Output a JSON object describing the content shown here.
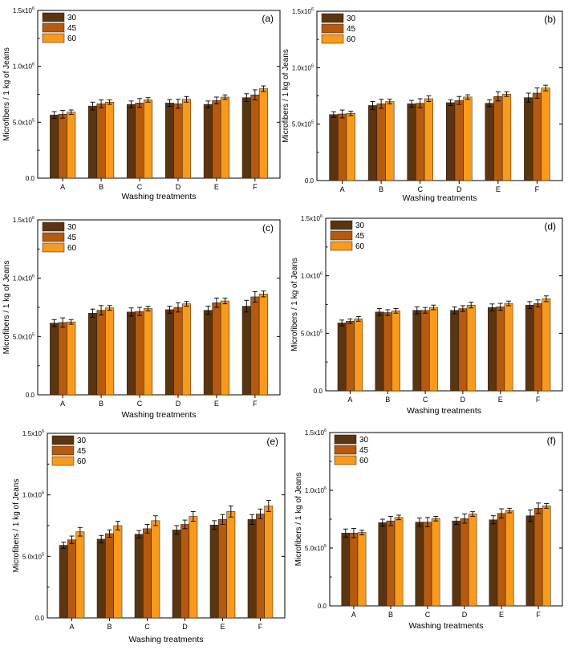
{
  "colors": {
    "s30": "#5b3410",
    "s45": "#b55a0e",
    "s60": "#f79a1d"
  },
  "chart_data": [
    {
      "type": "bar",
      "panel_label": "(a)",
      "categories": [
        "A",
        "B",
        "C",
        "D",
        "E",
        "F"
      ],
      "xlabel": "Washing treatments",
      "ylabel": "Microfibers / 1 kg of Jeans",
      "ylim": [
        0,
        1500000
      ],
      "yticks": [
        "0.0",
        "5.0x10",
        "1.0x10",
        "1.5x10"
      ],
      "ytick_exps": [
        "",
        "5",
        "6",
        "6"
      ],
      "legend": [
        "30",
        "45",
        "60"
      ],
      "series": [
        {
          "name": "30",
          "values": [
            565000,
            645000,
            660000,
            672000,
            660000,
            720000
          ],
          "errors": [
            30000,
            35000,
            30000,
            30000,
            30000,
            35000
          ]
        },
        {
          "name": "45",
          "values": [
            572000,
            665000,
            672000,
            665000,
            695000,
            745000
          ],
          "errors": [
            35000,
            35000,
            40000,
            40000,
            30000,
            45000
          ]
        },
        {
          "name": "60",
          "values": [
            590000,
            680000,
            700000,
            705000,
            725000,
            800000
          ],
          "errors": [
            20000,
            20000,
            20000,
            25000,
            20000,
            25000
          ]
        }
      ]
    },
    {
      "type": "bar",
      "panel_label": "(b)",
      "categories": [
        "A",
        "B",
        "C",
        "D",
        "E",
        "F"
      ],
      "xlabel": "Washing treatments",
      "ylabel": "Microfibers / 1 kg of Jeans",
      "ylim": [
        0,
        1500000
      ],
      "yticks": [
        "0.0",
        "5.0x10",
        "1.0x10",
        "1.5x10"
      ],
      "ytick_exps": [
        "",
        "5",
        "6",
        "6"
      ],
      "legend": [
        "30",
        "45",
        "60"
      ],
      "series": [
        {
          "name": "30",
          "values": [
            585000,
            665000,
            680000,
            690000,
            685000,
            735000
          ],
          "errors": [
            25000,
            35000,
            30000,
            25000,
            30000,
            40000
          ]
        },
        {
          "name": "45",
          "values": [
            590000,
            680000,
            685000,
            710000,
            745000,
            775000
          ],
          "errors": [
            35000,
            40000,
            40000,
            35000,
            40000,
            45000
          ]
        },
        {
          "name": "60",
          "values": [
            595000,
            700000,
            725000,
            740000,
            765000,
            820000
          ],
          "errors": [
            20000,
            20000,
            25000,
            20000,
            20000,
            25000
          ]
        }
      ]
    },
    {
      "type": "bar",
      "panel_label": "(c)",
      "categories": [
        "A",
        "B",
        "C",
        "D",
        "E",
        "F"
      ],
      "xlabel": "Washing treatments",
      "ylabel": "Microfibers / 1 kg of Jeans",
      "ylim": [
        0,
        1500000
      ],
      "yticks": [
        "0.0",
        "5.0x10",
        "1.0x10",
        "1.5x10"
      ],
      "ytick_exps": [
        "",
        "5",
        "6",
        "6"
      ],
      "legend": [
        "30",
        "45",
        "60"
      ],
      "series": [
        {
          "name": "30",
          "values": [
            615000,
            700000,
            710000,
            730000,
            725000,
            760000
          ],
          "errors": [
            30000,
            35000,
            35000,
            30000,
            35000,
            50000
          ]
        },
        {
          "name": "45",
          "values": [
            620000,
            725000,
            715000,
            750000,
            790000,
            840000
          ],
          "errors": [
            40000,
            40000,
            35000,
            40000,
            40000,
            45000
          ]
        },
        {
          "name": "60",
          "values": [
            625000,
            745000,
            740000,
            780000,
            805000,
            865000
          ],
          "errors": [
            20000,
            20000,
            20000,
            20000,
            25000,
            25000
          ]
        }
      ]
    },
    {
      "type": "bar",
      "panel_label": "(d)",
      "categories": [
        "A",
        "B",
        "C",
        "D",
        "E",
        "F"
      ],
      "xlabel": "Washing treatments",
      "ylabel": "Microfibers / 1 kg of Jeans",
      "ylim": [
        0,
        1500000
      ],
      "yticks": [
        "0.0",
        "5.0x10",
        "1.0x10",
        "1.5x10"
      ],
      "ytick_exps": [
        "",
        "5",
        "6",
        "6"
      ],
      "legend": [
        "30",
        "45",
        "60"
      ],
      "series": [
        {
          "name": "30",
          "values": [
            590000,
            685000,
            700000,
            700000,
            725000,
            745000
          ],
          "errors": [
            25000,
            30000,
            30000,
            30000,
            30000,
            30000
          ]
        },
        {
          "name": "45",
          "values": [
            605000,
            680000,
            700000,
            715000,
            730000,
            760000
          ],
          "errors": [
            20000,
            25000,
            25000,
            25000,
            30000,
            30000
          ]
        },
        {
          "name": "60",
          "values": [
            625000,
            695000,
            725000,
            745000,
            760000,
            800000
          ],
          "errors": [
            20000,
            20000,
            20000,
            25000,
            20000,
            25000
          ]
        }
      ]
    },
    {
      "type": "bar",
      "panel_label": "(e)",
      "categories": [
        "A",
        "B",
        "C",
        "D",
        "E",
        "F"
      ],
      "xlabel": "Washing treatments",
      "ylabel": "Microfibers / 1 kg of Jeans",
      "ylim": [
        0,
        1500000
      ],
      "yticks": [
        "0.0",
        "5.0x10",
        "1.0x10",
        "1.5x10"
      ],
      "ytick_exps": [
        "",
        "5",
        "6",
        "6"
      ],
      "legend": [
        "30",
        "45",
        "60"
      ],
      "series": [
        {
          "name": "30",
          "values": [
            590000,
            640000,
            680000,
            715000,
            755000,
            800000
          ],
          "errors": [
            25000,
            30000,
            30000,
            35000,
            35000,
            40000
          ]
        },
        {
          "name": "45",
          "values": [
            635000,
            685000,
            725000,
            760000,
            800000,
            845000
          ],
          "errors": [
            30000,
            30000,
            35000,
            35000,
            40000,
            40000
          ]
        },
        {
          "name": "60",
          "values": [
            700000,
            750000,
            790000,
            825000,
            865000,
            910000
          ],
          "errors": [
            35000,
            35000,
            40000,
            40000,
            45000,
            45000
          ]
        }
      ]
    },
    {
      "type": "bar",
      "panel_label": "(f)",
      "categories": [
        "A",
        "B",
        "C",
        "D",
        "E",
        "F"
      ],
      "xlabel": "Washing treatments",
      "ylabel": "Microfibers / 1 kg of Jeans",
      "ylim": [
        0,
        1500000
      ],
      "yticks": [
        "0.0",
        "5.0x10",
        "1.0x10",
        "1.5x10"
      ],
      "ytick_exps": [
        "",
        "5",
        "6",
        "6"
      ],
      "legend": [
        "30",
        "45",
        "60"
      ],
      "series": [
        {
          "name": "30",
          "values": [
            630000,
            720000,
            725000,
            735000,
            745000,
            780000
          ],
          "errors": [
            35000,
            30000,
            35000,
            30000,
            35000,
            50000
          ]
        },
        {
          "name": "45",
          "values": [
            630000,
            735000,
            725000,
            755000,
            800000,
            845000
          ],
          "errors": [
            40000,
            40000,
            40000,
            40000,
            40000,
            45000
          ]
        },
        {
          "name": "60",
          "values": [
            635000,
            765000,
            755000,
            795000,
            825000,
            865000
          ],
          "errors": [
            20000,
            20000,
            20000,
            20000,
            20000,
            20000
          ]
        }
      ]
    }
  ]
}
